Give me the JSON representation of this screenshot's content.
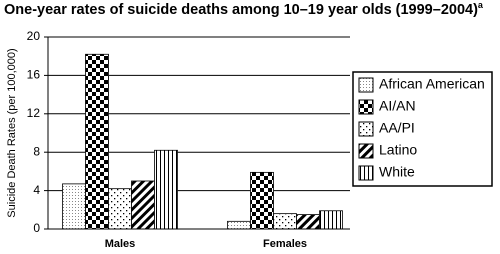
{
  "chart_data": {
    "type": "bar",
    "title": "One-year rates of suicide deaths among 10–19 year olds (1999–2004)",
    "title_note": "a",
    "y_label": "Suicide Death Rates (per 100,000)",
    "categories": [
      "Males",
      "Females"
    ],
    "series": [
      {
        "name": "African American",
        "pattern": "fine-dots",
        "values": [
          4.7,
          0.8
        ]
      },
      {
        "name": "AI/AN",
        "pattern": "checker",
        "values": [
          18.2,
          5.9
        ]
      },
      {
        "name": "AA/PI",
        "pattern": "sparse-dots",
        "values": [
          4.2,
          1.6
        ]
      },
      {
        "name": "Latino",
        "pattern": "diagonal",
        "values": [
          5.0,
          1.5
        ]
      },
      {
        "name": "White",
        "pattern": "vertical",
        "values": [
          8.2,
          1.9
        ]
      }
    ],
    "ylim": [
      0,
      20
    ],
    "yticks": [
      0,
      4,
      8,
      12,
      16,
      20
    ],
    "grid": true,
    "legend": "right"
  }
}
